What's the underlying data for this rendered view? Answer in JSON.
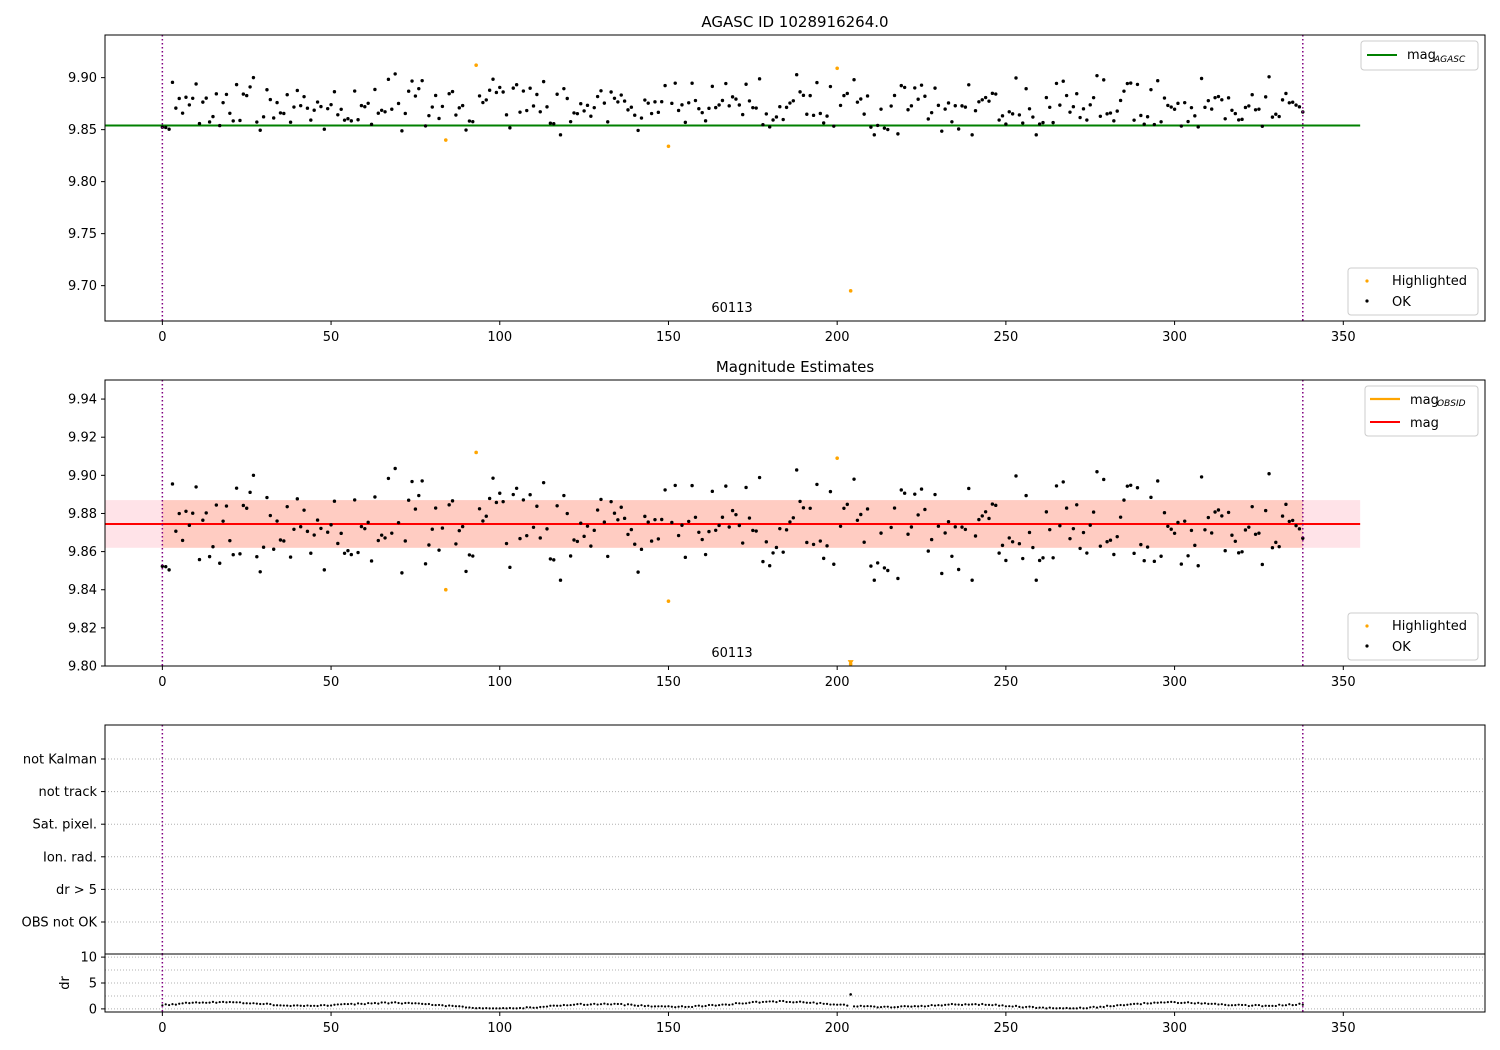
{
  "chart_data": [
    {
      "type": "scatter",
      "title": "AGASC ID 1028916264.0",
      "xlabel": "",
      "ylabel": "",
      "xlim": [
        -17,
        392
      ],
      "ylim": [
        9.666,
        9.941
      ],
      "xticks": [
        0,
        50,
        100,
        150,
        200,
        250,
        300,
        350
      ],
      "yticks": [
        "9.70",
        "9.75",
        "9.80",
        "9.85",
        "9.90"
      ],
      "obsid_annotation": "60113",
      "obs_boundaries_x": [
        0,
        338
      ],
      "reference_lines": [
        {
          "name": "mag_AGASC",
          "label_main": "mag",
          "label_sub": "AGASC",
          "y": 9.854,
          "x_range": [
            -17,
            355
          ],
          "color": "#008000"
        }
      ],
      "legend_lines_position": "top-right",
      "legend_points_position": "bottom-right",
      "point_legend": [
        {
          "label": "Highlighted",
          "color": "#ffa500"
        },
        {
          "label": "OK",
          "color": "#000000"
        }
      ],
      "points_note": "338 black OK points ranging 9.845-9.905 (mean ~9.875); highlighted points listed below",
      "highlighted_points": [
        {
          "x": 84,
          "y": 9.84
        },
        {
          "x": 93,
          "y": 9.912
        },
        {
          "x": 150,
          "y": 9.834
        },
        {
          "x": 200,
          "y": 9.909
        },
        {
          "x": 204,
          "y": 9.695
        }
      ],
      "ok_range": [
        9.845,
        9.905
      ],
      "ok_mean": 9.8745,
      "grid": false
    },
    {
      "type": "scatter",
      "title": "Magnitude Estimates",
      "xlabel": "",
      "ylabel": "",
      "xlim": [
        -17,
        392
      ],
      "ylim": [
        9.8,
        9.95
      ],
      "xticks": [
        0,
        50,
        100,
        150,
        200,
        250,
        300,
        350
      ],
      "yticks": [
        "9.80",
        "9.82",
        "9.84",
        "9.86",
        "9.88",
        "9.90",
        "9.92",
        "9.94"
      ],
      "obsid_annotation": "60113",
      "obs_boundaries_x": [
        0,
        338
      ],
      "reference_lines": [
        {
          "name": "mag_OBSID",
          "label_main": "mag",
          "label_sub": "OBSID",
          "y": 9.8745,
          "x_range": [
            0,
            338
          ],
          "color": "#ffa500"
        },
        {
          "name": "mag",
          "label_main": "mag",
          "label_sub": "",
          "y": 9.8745,
          "x_range": [
            -17,
            355
          ],
          "color": "#ff0000"
        }
      ],
      "bands": [
        {
          "y_low": 9.862,
          "y_high": 9.887,
          "x_range": [
            -17,
            355
          ],
          "color": "#ffc0cb"
        },
        {
          "y_low": 9.862,
          "y_high": 9.887,
          "x_range": [
            0,
            338
          ],
          "color": "#ffa07a"
        }
      ],
      "point_legend": [
        {
          "label": "Highlighted",
          "color": "#ffa500"
        },
        {
          "label": "OK",
          "color": "#000000"
        }
      ],
      "highlighted_points": [
        {
          "x": 84,
          "y": 9.84
        },
        {
          "x": 93,
          "y": 9.912
        },
        {
          "x": 150,
          "y": 9.834
        },
        {
          "x": 200,
          "y": 9.909
        },
        {
          "x": 204,
          "y": 9.801
        }
      ],
      "ok_range": [
        9.845,
        9.905
      ],
      "ok_mean": 9.8745,
      "grid": false
    },
    {
      "type": "scatter",
      "title": "",
      "xlim": [
        -17,
        392
      ],
      "flag_rows": [
        "not Kalman",
        "not track",
        "Sat. pixel.",
        "Ion. rad.",
        "dr > 5",
        "OBS not OK"
      ],
      "flag_grid": "dotted",
      "obs_boundaries_x": [
        0,
        338
      ]
    },
    {
      "type": "scatter",
      "title": "",
      "xlabel": "",
      "ylabel": "dr",
      "xlim": [
        -17,
        392
      ],
      "ylim": [
        -0.6,
        10.6
      ],
      "xticks": [
        0,
        50,
        100,
        150,
        200,
        250,
        300,
        350
      ],
      "yticks": [
        "0",
        "5",
        "10"
      ],
      "obs_boundaries_x": [
        0,
        338
      ],
      "dr_range": [
        0.1,
        1.6
      ],
      "dr_outlier": {
        "x": 204,
        "y": 2.8
      },
      "grid": "dotted"
    }
  ],
  "colors": {
    "ok": "#000000",
    "highlighted": "#ffa500",
    "boundary": "#800080",
    "agasc_line": "#008000",
    "mag_line": "#ff0000",
    "obsid_line": "#ffa500"
  }
}
